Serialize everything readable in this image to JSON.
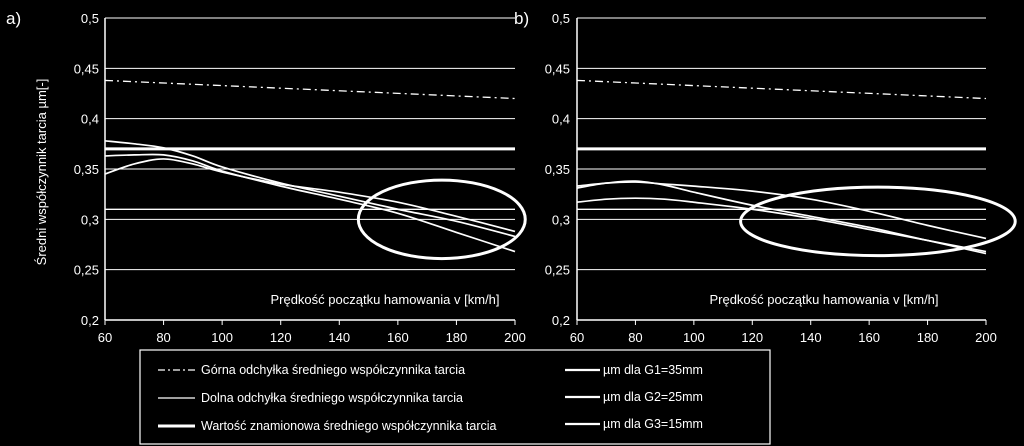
{
  "colors": {
    "background": "#000000",
    "foreground": "#ffffff"
  },
  "chart_data": [
    {
      "type": "line",
      "panel_label": "a)",
      "ylabel": "Średni współczynnik tarcia µm[-]",
      "xlabel": "Prędkość początku hamowania v [km/h]",
      "x_ticks": [
        "60",
        "80",
        "100",
        "120",
        "140",
        "160",
        "180",
        "200"
      ],
      "y_ticks": [
        "0,2",
        "0,25",
        "0,3",
        "0,35",
        "0,4",
        "0,45",
        "0,5"
      ],
      "xlim": [
        60,
        200
      ],
      "ylim": [
        0.2,
        0.5
      ],
      "grid": true,
      "series": [
        {
          "name": "Górna odchyłka średniego współczynnika tarcia",
          "style": "dashdot",
          "x": [
            60,
            200
          ],
          "y": [
            0.438,
            0.42
          ]
        },
        {
          "name": "Dolna odchyłka średniego współczynnika tarcia",
          "style": "thin",
          "x": [
            60,
            200
          ],
          "y": [
            0.31,
            0.31
          ]
        },
        {
          "name": "Wartość znamionowa średniego współczynnika tarcia",
          "style": "thick",
          "x": [
            60,
            200
          ],
          "y": [
            0.37,
            0.37
          ]
        },
        {
          "name": "µm dla G1=35mm",
          "style": "solid",
          "x": [
            60,
            70,
            80,
            90,
            100,
            120,
            140,
            160,
            180,
            200
          ],
          "y": [
            0.345,
            0.355,
            0.36,
            0.355,
            0.347,
            0.335,
            0.327,
            0.317,
            0.303,
            0.288
          ]
        },
        {
          "name": "µm dla G2=25mm",
          "style": "solid",
          "x": [
            60,
            70,
            80,
            90,
            100,
            120,
            140,
            160,
            180,
            200
          ],
          "y": [
            0.378,
            0.375,
            0.371,
            0.363,
            0.352,
            0.336,
            0.323,
            0.31,
            0.298,
            0.283
          ]
        },
        {
          "name": "µm dla G3=15mm",
          "style": "solid",
          "x": [
            60,
            70,
            80,
            90,
            100,
            120,
            140,
            160,
            180,
            200
          ],
          "y": [
            0.363,
            0.364,
            0.364,
            0.358,
            0.348,
            0.333,
            0.32,
            0.306,
            0.287,
            0.268
          ]
        }
      ],
      "highlight_ellipse": {
        "cx": 175,
        "cy": 0.3,
        "rx": 28.5,
        "ry": 0.039
      }
    },
    {
      "type": "line",
      "panel_label": "b)",
      "ylabel": "",
      "xlabel": "Prędkość początku hamowania v [km/h]",
      "x_ticks": [
        "60",
        "80",
        "100",
        "120",
        "140",
        "160",
        "180",
        "200"
      ],
      "y_ticks": [
        "0,2",
        "0,25",
        "0,3",
        "0,35",
        "0,4",
        "0,45",
        "0,5"
      ],
      "xlim": [
        60,
        200
      ],
      "ylim": [
        0.2,
        0.5
      ],
      "grid": true,
      "series": [
        {
          "name": "Górna odchyłka średniego współczynnika tarcia",
          "style": "dashdot",
          "x": [
            60,
            200
          ],
          "y": [
            0.438,
            0.42
          ]
        },
        {
          "name": "Dolna odchyłka średniego współczynnika tarcia",
          "style": "thin",
          "x": [
            60,
            200
          ],
          "y": [
            0.31,
            0.31
          ]
        },
        {
          "name": "Wartość znamionowa średniego współczynnika tarcia",
          "style": "thick",
          "x": [
            60,
            200
          ],
          "y": [
            0.37,
            0.37
          ]
        },
        {
          "name": "µm dla G1=35mm",
          "style": "solid",
          "x": [
            60,
            70,
            80,
            90,
            100,
            120,
            140,
            160,
            180,
            200
          ],
          "y": [
            0.333,
            0.336,
            0.337,
            0.335,
            0.333,
            0.328,
            0.32,
            0.308,
            0.294,
            0.281
          ]
        },
        {
          "name": "µm dla G2=25mm",
          "style": "solid",
          "x": [
            60,
            70,
            80,
            90,
            100,
            120,
            140,
            160,
            180,
            200
          ],
          "y": [
            0.317,
            0.32,
            0.321,
            0.32,
            0.317,
            0.31,
            0.301,
            0.29,
            0.279,
            0.268
          ]
        },
        {
          "name": "µm dla G3=15mm",
          "style": "solid",
          "x": [
            60,
            70,
            80,
            90,
            100,
            120,
            140,
            160,
            180,
            200
          ],
          "y": [
            0.331,
            0.336,
            0.338,
            0.334,
            0.327,
            0.314,
            0.303,
            0.292,
            0.279,
            0.266
          ]
        }
      ],
      "highlight_ellipse": {
        "cx": 163,
        "cy": 0.298,
        "rx": 47,
        "ry": 0.034
      }
    }
  ],
  "legend": {
    "placement": "bottom",
    "items": [
      {
        "label": "Górna odchyłka średniego współczynnika tarcia",
        "style": "dashdot"
      },
      {
        "label": "Dolna odchyłka średniego współczynnika tarcia",
        "style": "thin"
      },
      {
        "label": "Wartość znamionowa średniego współczynnika tarcia",
        "style": "thick"
      },
      {
        "label": "µm dla G1=35mm",
        "style": "solid"
      },
      {
        "label": "µm dla G2=25mm",
        "style": "solid"
      },
      {
        "label": "µm dla G3=15mm",
        "style": "solid"
      }
    ]
  }
}
